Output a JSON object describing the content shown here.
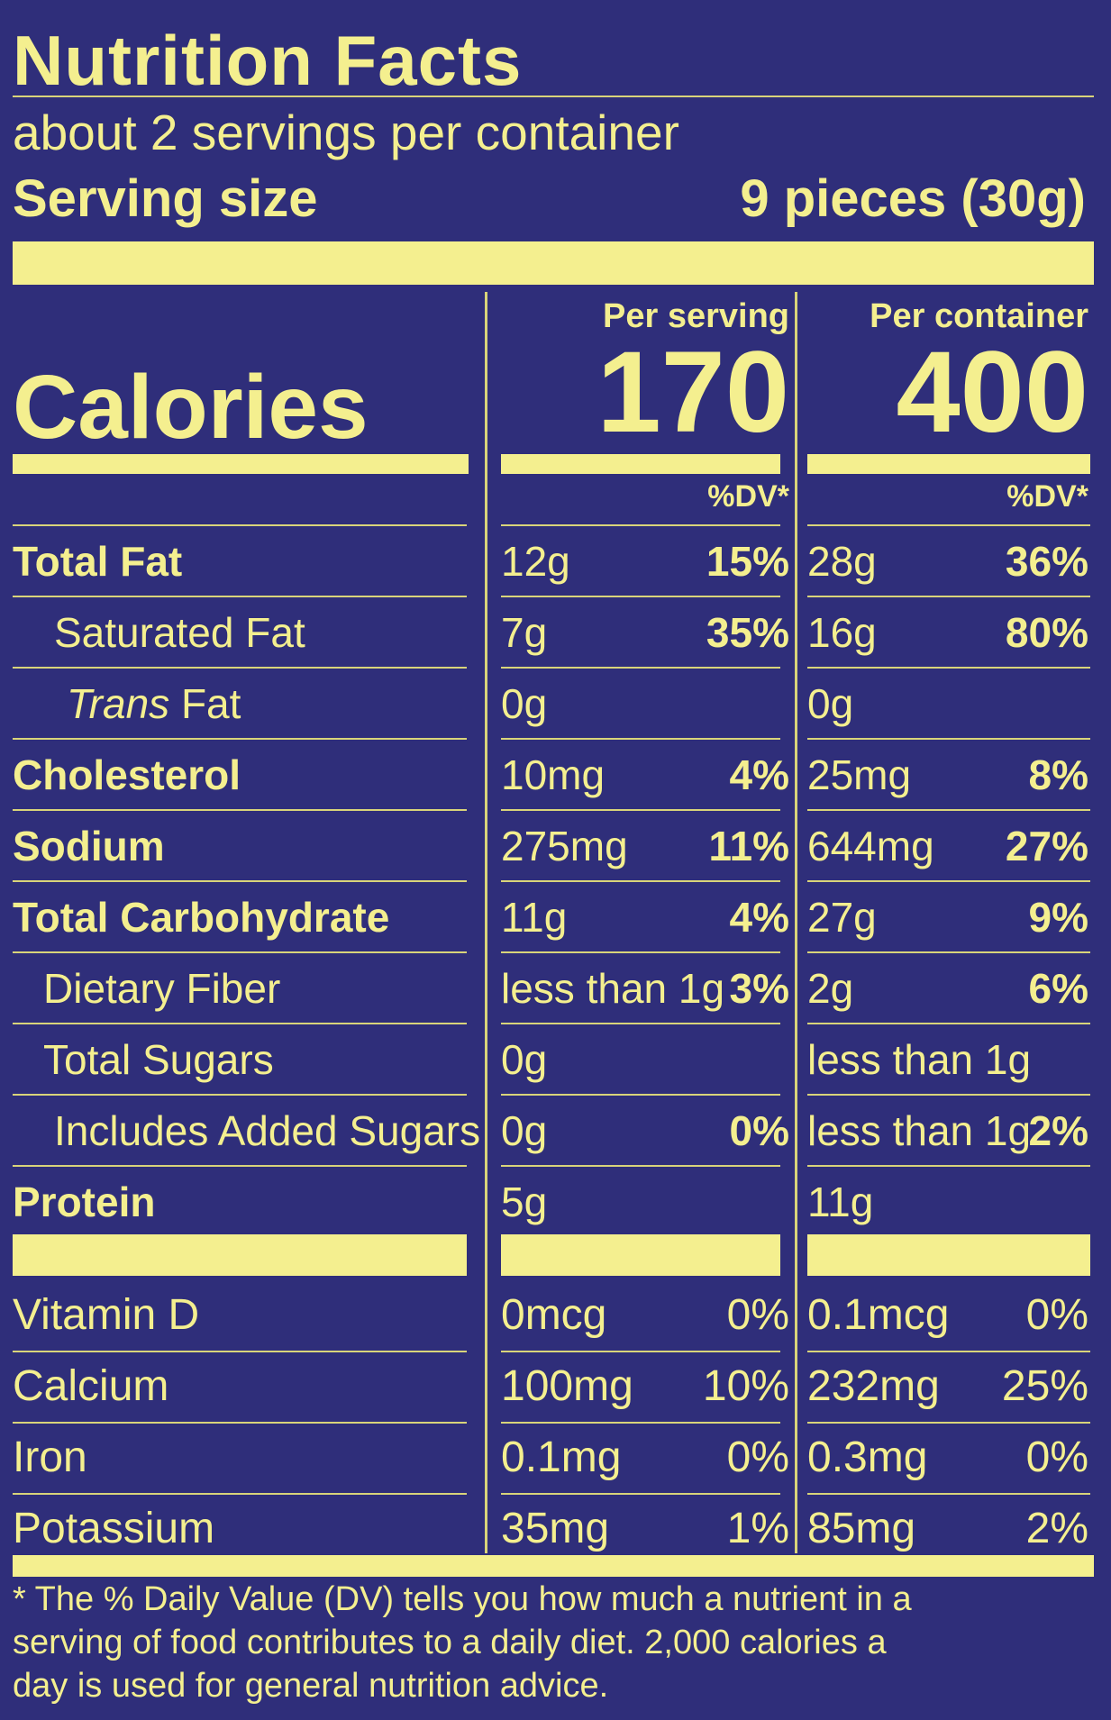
{
  "header": {
    "title": "Nutrition Facts",
    "servings_per_container": "about 2 servings per container",
    "serving_size_label": "Serving size",
    "serving_size_value": "9 pieces (30g)"
  },
  "calories": {
    "label": "Calories",
    "per_serving_header": "Per serving",
    "per_serving_value": "170",
    "per_container_header": "Per container",
    "per_container_value": "400",
    "dv_header_serving": "%DV*",
    "dv_header_container": "%DV*"
  },
  "nutrients": [
    {
      "name": "Total Fat",
      "serv_amt": "12g",
      "serv_dv": "15%",
      "cont_amt": "28g",
      "cont_dv": "36%"
    },
    {
      "name": "Saturated Fat",
      "serv_amt": "7g",
      "serv_dv": "35%",
      "cont_amt": "16g",
      "cont_dv": "80%"
    },
    {
      "name_italic": "Trans",
      "name_rest": " Fat",
      "serv_amt": "0g",
      "serv_dv": "",
      "cont_amt": "0g",
      "cont_dv": ""
    },
    {
      "name": "Cholesterol",
      "serv_amt": "10mg",
      "serv_dv": "4%",
      "cont_amt": "25mg",
      "cont_dv": "8%"
    },
    {
      "name": "Sodium",
      "serv_amt": "275mg",
      "serv_dv": "11%",
      "cont_amt": "644mg",
      "cont_dv": "27%"
    },
    {
      "name": "Total Carbohydrate",
      "serv_amt": "11g",
      "serv_dv": "4%",
      "cont_amt": "27g",
      "cont_dv": "9%"
    },
    {
      "name": "Dietary Fiber",
      "serv_amt": "less than 1g",
      "serv_dv": "3%",
      "cont_amt": "2g",
      "cont_dv": "6%"
    },
    {
      "name": "Total Sugars",
      "serv_amt": "0g",
      "serv_dv": "",
      "cont_amt": "less than 1g",
      "cont_dv": ""
    },
    {
      "name": "Includes Added Sugars",
      "serv_amt": "0g",
      "serv_dv": "0%",
      "cont_amt": "less than 1g",
      "cont_dv": "2%"
    },
    {
      "name": "Protein",
      "serv_amt": "5g",
      "serv_dv": "",
      "cont_amt": "11g",
      "cont_dv": ""
    }
  ],
  "vitamins": [
    {
      "name": "Vitamin D",
      "serv_amt": "0mcg",
      "serv_dv": "0%",
      "cont_amt": "0.1mcg",
      "cont_dv": "0%"
    },
    {
      "name": "Calcium",
      "serv_amt": "100mg",
      "serv_dv": "10%",
      "cont_amt": "232mg",
      "cont_dv": "25%"
    },
    {
      "name": "Iron",
      "serv_amt": "0.1mg",
      "serv_dv": "0%",
      "cont_amt": "0.3mg",
      "cont_dv": "0%"
    },
    {
      "name": "Potassium",
      "serv_amt": "35mg",
      "serv_dv": "1%",
      "cont_amt": "85mg",
      "cont_dv": "2%"
    }
  ],
  "footnote": {
    "line1": "* The % Daily Value (DV) tells you how much a nutrient in a",
    "line2": "serving of food contributes to a daily diet. 2,000 calories a",
    "line3": "day is used for general nutrition advice."
  },
  "colors": {
    "background": "#2f2e7a",
    "text": "#f4ef8f"
  }
}
